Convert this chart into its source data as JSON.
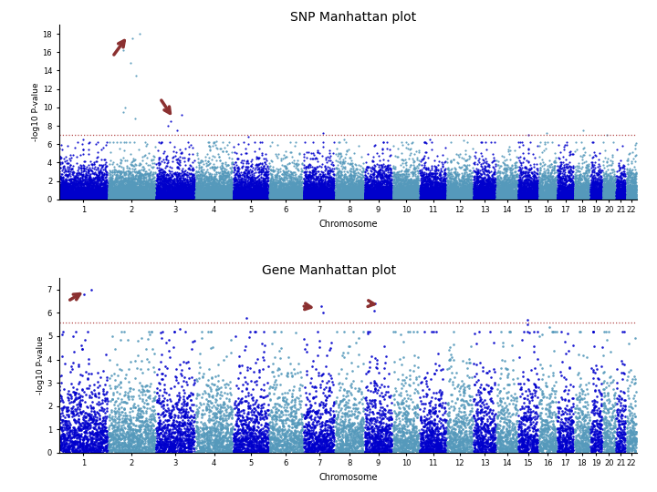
{
  "snp_title": "SNP Manhattan plot",
  "gene_title": "Gene Manhattan plot",
  "xlabel": "Chromosome",
  "ylabel": "-log10 P-value",
  "snp_ylim": [
    0,
    19
  ],
  "snp_yticks": [
    0,
    2,
    4,
    6,
    8,
    10,
    12,
    14,
    16,
    18
  ],
  "gene_ylim": [
    0,
    7.5
  ],
  "gene_yticks": [
    0,
    1,
    2,
    3,
    4,
    5,
    6,
    7
  ],
  "snp_threshold": 7.0,
  "gene_threshold": 5.6,
  "chromosomes": [
    1,
    2,
    3,
    4,
    5,
    6,
    7,
    8,
    9,
    10,
    11,
    12,
    13,
    14,
    15,
    16,
    17,
    18,
    19,
    20,
    21,
    22
  ],
  "color1": "#0000cc",
  "color2": "#5599bb",
  "background": "#ffffff",
  "arrow_color": "#8b3030",
  "threshold_color": "#aa3333",
  "seed": 42
}
